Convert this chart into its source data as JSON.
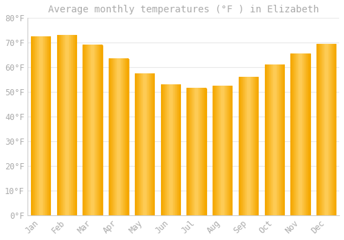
{
  "title": "Average monthly temperatures (°F ) in Elizabeth",
  "months": [
    "Jan",
    "Feb",
    "Mar",
    "Apr",
    "May",
    "Jun",
    "Jul",
    "Aug",
    "Sep",
    "Oct",
    "Nov",
    "Dec"
  ],
  "values": [
    72.5,
    73.0,
    69.0,
    63.5,
    57.5,
    53.0,
    51.5,
    52.5,
    56.0,
    61.0,
    65.5,
    69.5
  ],
  "bar_color_center": "#FFD060",
  "bar_color_edge": "#F5A800",
  "background_color": "#FFFFFF",
  "grid_color": "#E8E8E8",
  "text_color": "#AAAAAA",
  "spine_color": "#CCCCCC",
  "ylim": [
    0,
    80
  ],
  "yticks": [
    0,
    10,
    20,
    30,
    40,
    50,
    60,
    70,
    80
  ],
  "ytick_labels": [
    "0°F",
    "10°F",
    "20°F",
    "30°F",
    "40°F",
    "50°F",
    "60°F",
    "70°F",
    "80°F"
  ],
  "title_fontsize": 10,
  "tick_fontsize": 8.5
}
